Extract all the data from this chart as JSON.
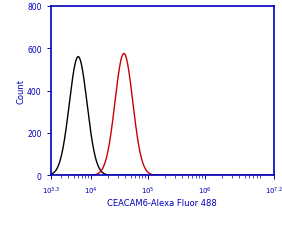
{
  "title": "",
  "xlabel": "CEACAM6-Alexa Fluor 488",
  "ylabel": "Count",
  "xlim_log": [
    3.3,
    7.2
  ],
  "ylim": [
    0,
    800
  ],
  "yticks": [
    0,
    200,
    400,
    600,
    800
  ],
  "black_peak_log": 3.78,
  "black_peak_count": 560,
  "black_sigma_log": 0.155,
  "red_peak_log": 4.58,
  "red_peak_count": 575,
  "red_sigma_log": 0.155,
  "black_color": "#000000",
  "red_color": "#cc0000",
  "blue_color": "#0000bb",
  "background_color": "#ffffff",
  "border_color": "#0000bb",
  "tick_color": "#0000bb",
  "label_color": "#0000bb",
  "lw": 1.0,
  "baseline_count": 0,
  "figsize": [
    2.82,
    2.26
  ],
  "dpi": 100
}
